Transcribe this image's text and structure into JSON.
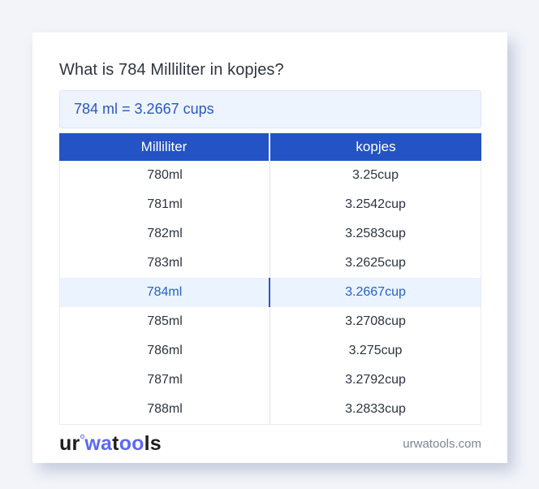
{
  "card": {
    "title": "What is 784 Milliliter in kopjes?",
    "result": "784 ml = 3.2667 cups"
  },
  "table": {
    "headers": [
      "Milliliter",
      "kopjes"
    ],
    "rows": [
      {
        "ml": "780ml",
        "cup": "3.25cup"
      },
      {
        "ml": "781ml",
        "cup": "3.2542cup"
      },
      {
        "ml": "782ml",
        "cup": "3.2583cup"
      },
      {
        "ml": "783ml",
        "cup": "3.2625cup"
      },
      {
        "ml": "784ml",
        "cup": "3.2667cup"
      },
      {
        "ml": "785ml",
        "cup": "3.2708cup"
      },
      {
        "ml": "786ml",
        "cup": "3.275cup"
      },
      {
        "ml": "787ml",
        "cup": "3.2792cup"
      },
      {
        "ml": "788ml",
        "cup": "3.2833cup"
      }
    ],
    "highlighted_row": "784ml"
  },
  "footer": {
    "logo": {
      "ur": "ur",
      "wa": "wa",
      "t": "t",
      "oo": "oo",
      "ls": "ls"
    },
    "domain": "urwatools.com"
  },
  "colors": {
    "page_bg": "#f2f4f9",
    "header_blue": "#2353c4",
    "result_bg": "#eef4fd",
    "result_text": "#2b57c0",
    "highlight_bg": "#eaf3fe",
    "highlight_text": "#2563c9",
    "row_text": "#2d3440",
    "logo_blue": "#5b6af0",
    "domain_text": "#7c8595"
  }
}
